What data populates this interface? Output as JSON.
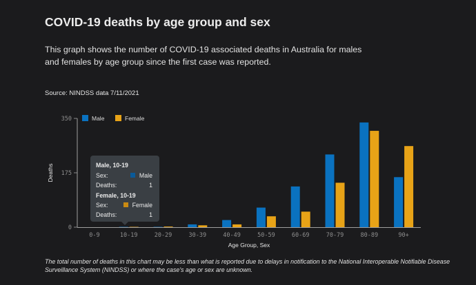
{
  "header": {
    "title": "COVID-19 deaths by age group and sex",
    "description": "This graph shows the number of COVID-19 associated deaths in Australia for males and females by age group since the first case was reported.",
    "source": "Source: NINDSS data 7/11/2021"
  },
  "footnote": "The total number of deaths in this chart may be less than what is reported due to delays in notification to the National Interoperable Notifiable Disease Surveillance System (NINDSS) or where the case's age or sex are unknown.",
  "colors": {
    "male": "#0a72c0",
    "female": "#e8a317",
    "male_tooltip": "#0a5a99",
    "female_tooltip": "#c98a12"
  },
  "chart_data": {
    "type": "bar",
    "title": "COVID-19 deaths by age group and sex",
    "xlabel": "Age Group, Sex",
    "ylabel": "Deaths",
    "ylim": [
      0,
      350
    ],
    "yticks": [
      "0",
      "175",
      "350"
    ],
    "categories": [
      "0-9",
      "10-19",
      "20-29",
      "30-39",
      "40-49",
      "50-59",
      "60-69",
      "70-79",
      "80-89",
      "90+"
    ],
    "series": [
      {
        "name": "Male",
        "values": [
          0,
          1,
          1,
          9,
          23,
          63,
          131,
          234,
          337,
          161
        ]
      },
      {
        "name": "Female",
        "values": [
          0,
          1,
          2,
          6,
          9,
          35,
          50,
          143,
          310,
          261
        ]
      }
    ],
    "legend": [
      "Male",
      "Female"
    ],
    "legend_position": "top-left"
  },
  "tooltip": {
    "male_title": "Male, 10-19",
    "female_title": "Female, 10-19",
    "sex_label": "Sex:",
    "deaths_label": "Deaths:",
    "male_sex": "Male",
    "female_sex": "Female",
    "male_deaths": "1",
    "female_deaths": "1"
  }
}
